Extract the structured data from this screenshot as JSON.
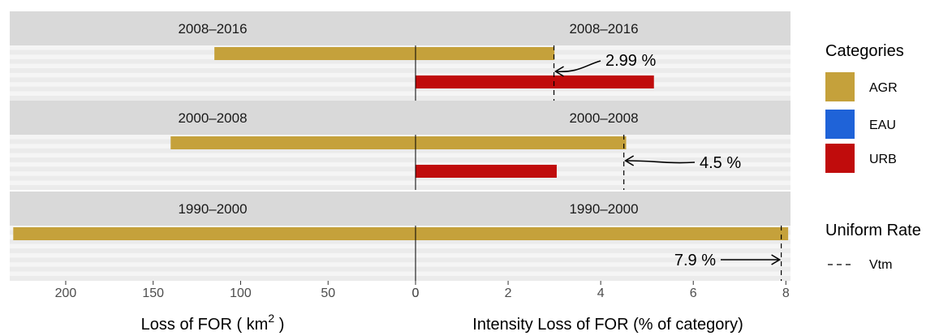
{
  "chart_data": {
    "type": "bar",
    "orientation": "horizontal",
    "panels": [
      {
        "label": "2008–2016",
        "bars": [
          {
            "category": "AGR",
            "loss_km2": 115,
            "intensity_pct": 3.0
          },
          {
            "category": "URB",
            "loss_km2": 0,
            "intensity_pct": 5.15
          }
        ],
        "uniform_rate": 2.99,
        "annotation": "2.99 %"
      },
      {
        "label": "2000–2008",
        "bars": [
          {
            "category": "AGR",
            "loss_km2": 140,
            "intensity_pct": 4.55
          },
          {
            "category": "URB",
            "loss_km2": 0,
            "intensity_pct": 3.05
          }
        ],
        "uniform_rate": 4.5,
        "annotation": "4.5 %"
      },
      {
        "label": "1990–2000",
        "bars": [
          {
            "category": "AGR",
            "loss_km2": 230,
            "intensity_pct": 8.05
          }
        ],
        "uniform_rate": 7.9,
        "annotation": "7.9 %"
      }
    ],
    "left_axis": {
      "title": "Loss of FOR ( km",
      "title_sup": "2",
      "title_end": " )",
      "ticks": [
        200,
        150,
        100,
        50,
        0
      ],
      "xlim": [
        232,
        0
      ]
    },
    "right_axis": {
      "title": "Intensity Loss of FOR (% of category)",
      "ticks": [
        0,
        2,
        4,
        6,
        8
      ],
      "xlim": [
        0,
        8.1
      ]
    },
    "legend": {
      "title": "Categories",
      "items": [
        {
          "name": "AGR",
          "color": "#C5A13B"
        },
        {
          "name": "EAU",
          "color": "#1F63D8"
        },
        {
          "name": "URB",
          "color": "#C00C0C"
        }
      ]
    },
    "legend_rate": {
      "title": "Uniform Rate",
      "item": "Vtm"
    },
    "grid": true,
    "legend_position": "right"
  }
}
